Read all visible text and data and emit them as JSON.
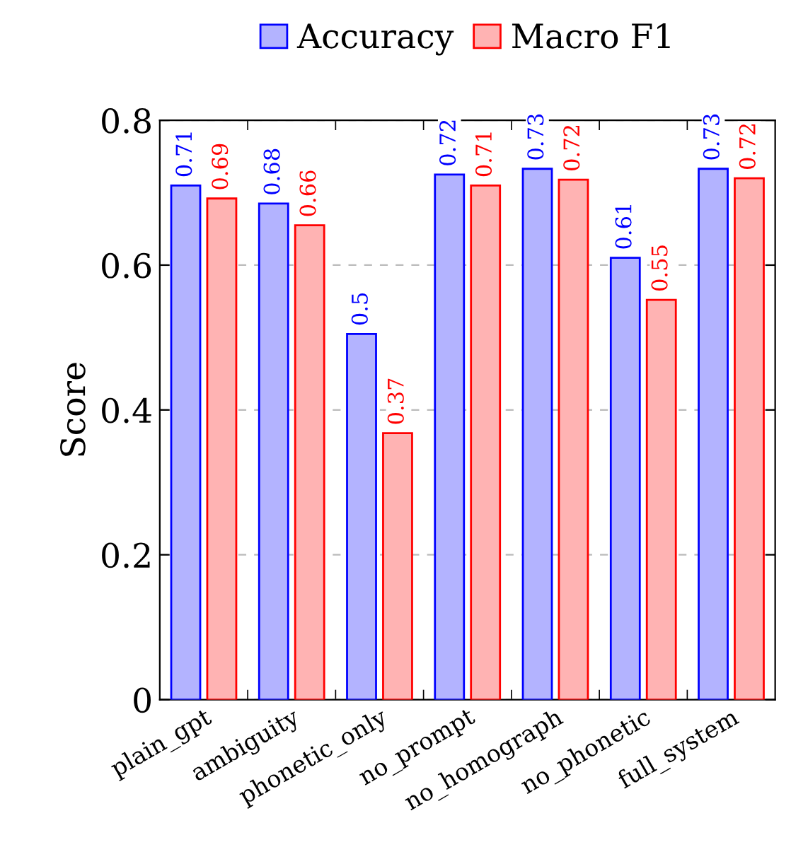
{
  "chart_data": {
    "type": "bar",
    "ylabel": "Score",
    "categories": [
      "plain_gpt",
      "ambiguity",
      "phonetic_only",
      "no_prompt",
      "no_homograph",
      "no_phonetic",
      "full_system"
    ],
    "series": [
      {
        "name": "Accuracy",
        "color": "#b3b3ff",
        "values": [
          0.71,
          0.685,
          0.505,
          0.725,
          0.733,
          0.61,
          0.733
        ],
        "value_labels": [
          "0.71",
          "0.68",
          "0.5",
          "0.72",
          "0.73",
          "0.61",
          "0.73"
        ]
      },
      {
        "name": "Macro F1",
        "color": "#ffb3b3",
        "values": [
          0.692,
          0.655,
          0.368,
          0.71,
          0.718,
          0.552,
          0.72
        ],
        "value_labels": [
          "0.69",
          "0.66",
          "0.37",
          "0.71",
          "0.72",
          "0.55",
          "0.72"
        ]
      }
    ],
    "ylim": [
      0,
      0.8
    ],
    "yticks": [
      {
        "value": 0,
        "label": "0"
      },
      0.2,
      0.4,
      0.6,
      0.8
    ],
    "grid": "y",
    "legend": "top"
  }
}
